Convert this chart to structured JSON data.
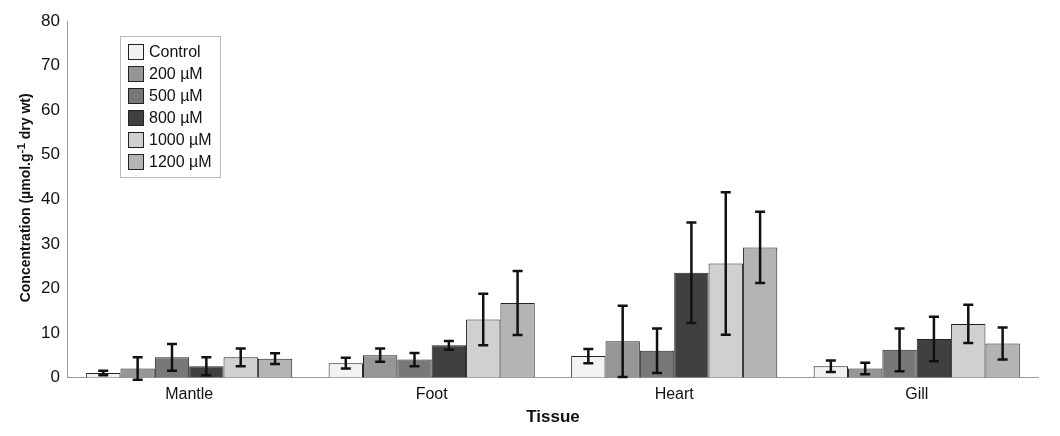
{
  "chart_data": {
    "type": "bar",
    "xlabel": "Tissue",
    "ylabel": "Concentration (µmol.g$^{-1}$ dry wt)",
    "categories": [
      "Mantle",
      "Foot",
      "Heart",
      "Gill"
    ],
    "series": [
      {
        "name": "Control",
        "color": "#f2f2f2",
        "values": [
          1,
          3.2,
          4.8,
          2.5
        ],
        "errors": [
          0.5,
          1.2,
          1.6,
          1.3
        ]
      },
      {
        "name": "200 µM",
        "color": "#969696",
        "values": [
          2,
          5,
          8.1,
          2
        ],
        "errors": [
          2.5,
          1.5,
          8,
          1.3
        ]
      },
      {
        "name": "500 µM",
        "color": "#787878",
        "values": [
          4.5,
          4,
          6,
          6.2
        ],
        "errors": [
          3,
          1.5,
          5,
          4.8
        ]
      },
      {
        "name": "800 µM",
        "color": "#404040",
        "values": [
          2.5,
          7.2,
          23.5,
          8.6
        ],
        "errors": [
          2,
          1,
          11.3,
          5
        ]
      },
      {
        "name": "1000 µM",
        "color": "#d0d0d0",
        "values": [
          4.5,
          13,
          25.6,
          12
        ],
        "errors": [
          2,
          5.8,
          16,
          4.3
        ]
      },
      {
        "name": "1200 µM",
        "color": "#b4b4b4",
        "values": [
          4.2,
          16.7,
          29.2,
          7.6
        ],
        "errors": [
          1.2,
          7.2,
          8,
          3.6
        ]
      }
    ],
    "ylim": [
      0,
      80
    ],
    "yticks": [
      0,
      10,
      20,
      30,
      40,
      50,
      60,
      70,
      80
    ],
    "grid": false,
    "legend": "top left"
  }
}
